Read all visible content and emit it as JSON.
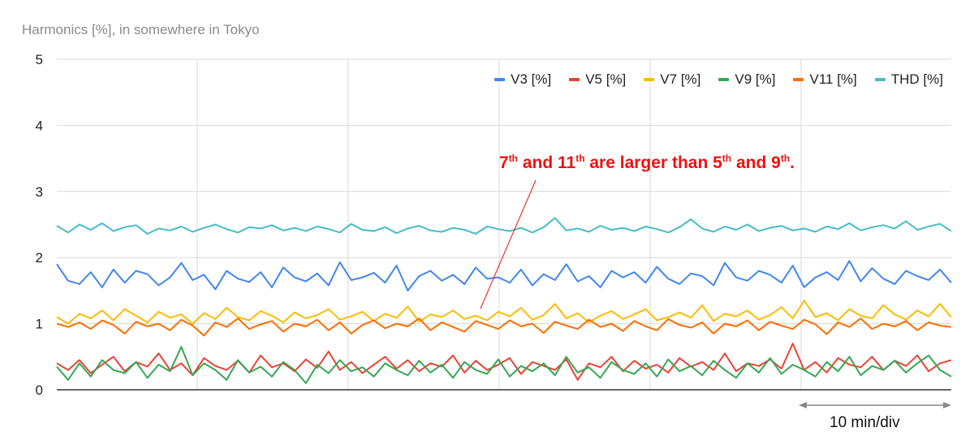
{
  "chart_data": {
    "type": "line",
    "title": "Harmonics [%], in somewhere in Tokyo",
    "ylim": [
      0,
      5
    ],
    "yticks": [
      "0",
      "1",
      "2",
      "3",
      "4",
      "5"
    ],
    "grid": true,
    "legend_position": "top-right",
    "x_scale_label": "10 min/div",
    "annotation": {
      "parts": [
        "7",
        "th",
        " and 11",
        "th",
        " are larger than 5",
        "th",
        " and 9",
        "th",
        "."
      ]
    },
    "series": [
      {
        "name": "V3 [%]",
        "color": "#4285f4",
        "values": [
          1.9,
          1.65,
          1.6,
          1.78,
          1.55,
          1.82,
          1.62,
          1.8,
          1.75,
          1.58,
          1.7,
          1.92,
          1.66,
          1.74,
          1.52,
          1.8,
          1.68,
          1.63,
          1.78,
          1.55,
          1.85,
          1.7,
          1.64,
          1.76,
          1.58,
          1.93,
          1.66,
          1.7,
          1.77,
          1.62,
          1.88,
          1.5,
          1.72,
          1.8,
          1.65,
          1.74,
          1.6,
          1.85,
          1.68,
          1.7,
          1.62,
          1.82,
          1.58,
          1.75,
          1.66,
          1.9,
          1.64,
          1.72,
          1.55,
          1.8,
          1.7,
          1.78,
          1.62,
          1.86,
          1.68,
          1.6,
          1.76,
          1.72,
          1.58,
          1.92,
          1.7,
          1.65,
          1.8,
          1.74,
          1.62,
          1.88,
          1.55,
          1.7,
          1.78,
          1.66,
          1.95,
          1.64,
          1.84,
          1.68,
          1.6,
          1.8,
          1.72,
          1.66,
          1.82,
          1.62
        ]
      },
      {
        "name": "V5 [%]",
        "color": "#ea4335",
        "values": [
          0.4,
          0.3,
          0.45,
          0.25,
          0.38,
          0.5,
          0.28,
          0.42,
          0.35,
          0.55,
          0.3,
          0.4,
          0.22,
          0.48,
          0.36,
          0.3,
          0.44,
          0.26,
          0.52,
          0.34,
          0.4,
          0.28,
          0.46,
          0.33,
          0.58,
          0.3,
          0.42,
          0.25,
          0.38,
          0.5,
          0.32,
          0.45,
          0.28,
          0.4,
          0.35,
          0.52,
          0.26,
          0.44,
          0.3,
          0.38,
          0.48,
          0.24,
          0.42,
          0.36,
          0.3,
          0.46,
          0.15,
          0.4,
          0.34,
          0.5,
          0.28,
          0.44,
          0.32,
          0.38,
          0.26,
          0.48,
          0.35,
          0.42,
          0.3,
          0.55,
          0.28,
          0.4,
          0.36,
          0.46,
          0.32,
          0.7,
          0.3,
          0.42,
          0.26,
          0.48,
          0.38,
          0.34,
          0.5,
          0.3,
          0.44,
          0.36,
          0.52,
          0.28,
          0.4,
          0.45
        ]
      },
      {
        "name": "V7 [%]",
        "color": "#fbbc04",
        "values": [
          1.1,
          1.0,
          1.15,
          1.08,
          1.2,
          1.05,
          1.22,
          1.12,
          1.02,
          1.18,
          1.09,
          1.14,
          1.0,
          1.16,
          1.07,
          1.24,
          1.1,
          1.05,
          1.19,
          1.12,
          1.02,
          1.17,
          1.08,
          1.13,
          1.22,
          1.06,
          1.11,
          1.18,
          1.04,
          1.15,
          1.09,
          1.26,
          1.03,
          1.14,
          1.1,
          1.2,
          1.07,
          1.12,
          1.05,
          1.18,
          1.11,
          1.24,
          1.06,
          1.13,
          1.3,
          1.08,
          1.16,
          1.02,
          1.12,
          1.19,
          1.07,
          1.14,
          1.22,
          1.05,
          1.1,
          1.17,
          1.09,
          1.28,
          1.04,
          1.15,
          1.11,
          1.2,
          1.06,
          1.13,
          1.25,
          1.08,
          1.35,
          1.1,
          1.16,
          1.05,
          1.22,
          1.12,
          1.08,
          1.28,
          1.14,
          1.06,
          1.2,
          1.11,
          1.3,
          1.1
        ]
      },
      {
        "name": "V9 [%]",
        "color": "#34a853",
        "values": [
          0.35,
          0.15,
          0.4,
          0.2,
          0.45,
          0.3,
          0.25,
          0.42,
          0.18,
          0.38,
          0.28,
          0.65,
          0.22,
          0.4,
          0.3,
          0.15,
          0.45,
          0.26,
          0.35,
          0.2,
          0.42,
          0.3,
          0.1,
          0.38,
          0.25,
          0.45,
          0.28,
          0.34,
          0.2,
          0.4,
          0.3,
          0.22,
          0.44,
          0.26,
          0.38,
          0.18,
          0.42,
          0.3,
          0.24,
          0.46,
          0.2,
          0.36,
          0.28,
          0.4,
          0.22,
          0.5,
          0.26,
          0.34,
          0.18,
          0.42,
          0.3,
          0.24,
          0.4,
          0.2,
          0.46,
          0.28,
          0.36,
          0.22,
          0.44,
          0.3,
          0.18,
          0.4,
          0.26,
          0.48,
          0.24,
          0.38,
          0.3,
          0.2,
          0.42,
          0.28,
          0.5,
          0.22,
          0.36,
          0.3,
          0.44,
          0.26,
          0.4,
          0.52,
          0.3,
          0.2
        ]
      },
      {
        "name": "V11 [%]",
        "color": "#ff6d01",
        "values": [
          1.0,
          0.95,
          1.02,
          0.92,
          1.05,
          0.98,
          0.85,
          1.03,
          0.96,
          1.0,
          0.9,
          1.06,
          0.97,
          0.82,
          1.02,
          0.95,
          1.08,
          0.92,
          0.99,
          1.04,
          0.88,
          1.0,
          0.96,
          1.06,
          0.9,
          1.02,
          0.85,
          0.98,
          1.05,
          0.93,
          1.0,
          0.96,
          1.08,
          0.9,
          1.02,
          0.95,
          0.88,
          1.04,
          0.98,
          0.92,
          1.05,
          0.96,
          1.0,
          0.86,
          1.03,
          0.97,
          0.92,
          1.06,
          0.95,
          1.0,
          0.89,
          1.04,
          0.96,
          0.9,
          1.07,
          0.98,
          0.94,
          1.02,
          0.85,
          1.0,
          0.96,
          1.05,
          0.9,
          1.03,
          0.97,
          0.92,
          1.06,
          0.99,
          0.84,
          1.02,
          0.95,
          1.08,
          0.92,
          1.0,
          0.96,
          1.04,
          0.9,
          1.02,
          0.97,
          0.95
        ]
      },
      {
        "name": "THD [%]",
        "color": "#46bdc6",
        "values": [
          2.48,
          2.38,
          2.5,
          2.42,
          2.52,
          2.4,
          2.46,
          2.49,
          2.36,
          2.44,
          2.41,
          2.47,
          2.39,
          2.45,
          2.5,
          2.43,
          2.38,
          2.46,
          2.44,
          2.49,
          2.41,
          2.45,
          2.4,
          2.47,
          2.43,
          2.38,
          2.51,
          2.42,
          2.4,
          2.46,
          2.37,
          2.44,
          2.48,
          2.41,
          2.39,
          2.45,
          2.42,
          2.36,
          2.47,
          2.43,
          2.4,
          2.45,
          2.38,
          2.46,
          2.6,
          2.41,
          2.44,
          2.39,
          2.48,
          2.42,
          2.45,
          2.4,
          2.47,
          2.43,
          2.38,
          2.46,
          2.58,
          2.44,
          2.39,
          2.47,
          2.42,
          2.5,
          2.4,
          2.45,
          2.48,
          2.41,
          2.44,
          2.39,
          2.47,
          2.43,
          2.52,
          2.41,
          2.46,
          2.49,
          2.44,
          2.55,
          2.42,
          2.47,
          2.51,
          2.4
        ]
      }
    ]
  }
}
